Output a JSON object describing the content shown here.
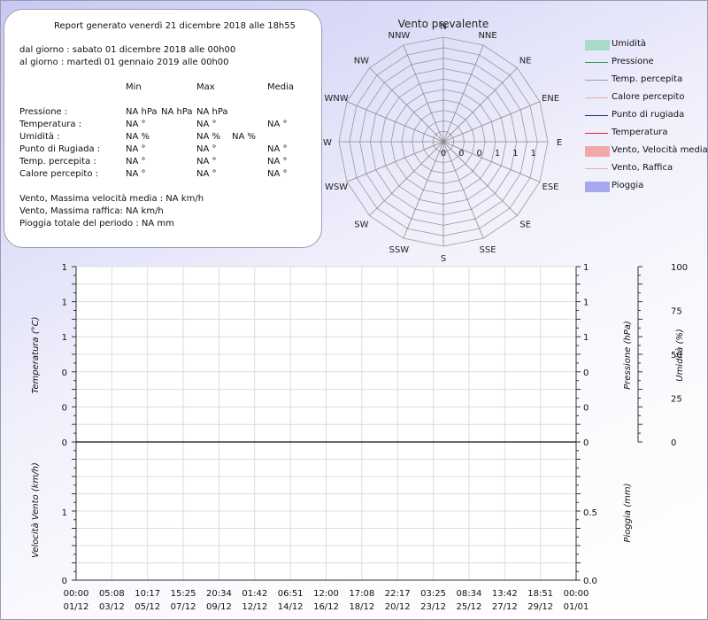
{
  "summary": {
    "title": "Report generato venerdì 21 dicembre 2018 alle 18h55",
    "from": "dal giorno : sabato 01 dicembre 2018 alle 00h00",
    "to": "al giorno : martedì 01 gennaio 2019 alle 00h00",
    "headers": {
      "min": "Min",
      "max": "Max",
      "media": "Media"
    },
    "rows": [
      {
        "label": "Pressione :",
        "min": "NA hPa",
        "max": "NA hPa",
        "media": "NA hPa"
      },
      {
        "label": "Temperatura :",
        "min": "NA °",
        "max": "NA °",
        "media": "NA °"
      },
      {
        "label": "Umidità :",
        "min": "NA %",
        "max": "NA %",
        "media": "NA %"
      },
      {
        "label": "Punto di Rugiada :",
        "min": "NA °",
        "max": "NA °",
        "media": "NA °"
      },
      {
        "label": "Temp. percepita :",
        "min": "NA °",
        "max": "NA °",
        "media": "NA °"
      },
      {
        "label": "Calore percepito :",
        "min": "NA °",
        "max": "NA °",
        "media": "NA °"
      }
    ],
    "wind_avg": "Vento, Massima velocità media : NA km/h",
    "wind_gust": "Vento, Massima raffica: NA km/h",
    "rain_total": "Pioggia totale del periodo : NA mm"
  },
  "legend": [
    {
      "label": "Umidità",
      "color": "#a8dcc8",
      "style": "box"
    },
    {
      "label": "Pressione",
      "color": "#2e9a4a",
      "style": "line"
    },
    {
      "label": "Temp. percepita",
      "color": "#9a9ac8",
      "style": "line"
    },
    {
      "label": "Calore percepito",
      "color": "#e8a8a8",
      "style": "line"
    },
    {
      "label": "Punto di rugiada",
      "color": "#2a2a8c",
      "style": "line"
    },
    {
      "label": "Temperatura",
      "color": "#e02828",
      "style": "line"
    },
    {
      "label": "Vento, Velocità media",
      "color": "#f0a8a8",
      "style": "box"
    },
    {
      "label": "Vento, Raffica",
      "color": "#f0a8a8",
      "style": "line"
    },
    {
      "label": "Pioggia",
      "color": "#a8a8f0",
      "style": "box"
    }
  ],
  "chart_data": [
    {
      "type": "radar",
      "title": "Vento prevalente",
      "directions": [
        "N",
        "NNE",
        "NE",
        "ENE",
        "E",
        "ESE",
        "SE",
        "SSE",
        "S",
        "SSW",
        "SW",
        "WSW",
        "W",
        "WNW",
        "NW",
        "NNW"
      ],
      "values": [
        0,
        0,
        0,
        0,
        0,
        0,
        0,
        0,
        0,
        0,
        0,
        0,
        0,
        0,
        0,
        0
      ],
      "radial_tick_labels": [
        "0",
        "0",
        "0",
        "1",
        "1",
        "1"
      ]
    },
    {
      "type": "line",
      "x_tick_times": [
        "00:00",
        "05:08",
        "10:17",
        "15:25",
        "20:34",
        "01:42",
        "06:51",
        "12:00",
        "17:08",
        "22:17",
        "03:25",
        "08:34",
        "13:42",
        "18:51",
        "00:00"
      ],
      "x_tick_dates": [
        "01/12",
        "03/12",
        "05/12",
        "07/12",
        "09/12",
        "12/12",
        "14/12",
        "16/12",
        "18/12",
        "20/12",
        "23/12",
        "25/12",
        "27/12",
        "29/12",
        "01/01"
      ],
      "temperature_axis": {
        "label": "Temperatura (°C)",
        "ticks": [
          "1",
          "1",
          "1",
          "0",
          "0",
          "0"
        ]
      },
      "pressure_axis": {
        "label": "Pressione (hPa)",
        "ticks": [
          "1",
          "1",
          "1",
          "0",
          "0",
          "0"
        ]
      },
      "humidity_axis": {
        "label": "Umidità (%)",
        "ticks": [
          "100",
          "75",
          "50",
          "25",
          "0"
        ],
        "ylim": [
          0,
          100
        ]
      },
      "series": []
    },
    {
      "type": "bar",
      "x_tick_times": [
        "00:00",
        "05:08",
        "10:17",
        "15:25",
        "20:34",
        "01:42",
        "06:51",
        "12:00",
        "17:08",
        "22:17",
        "03:25",
        "08:34",
        "13:42",
        "18:51",
        "00:00"
      ],
      "x_tick_dates": [
        "01/12",
        "03/12",
        "05/12",
        "07/12",
        "09/12",
        "12/12",
        "14/12",
        "16/12",
        "18/12",
        "20/12",
        "23/12",
        "25/12",
        "27/12",
        "29/12",
        "01/01"
      ],
      "wind_axis": {
        "label": "Velocità Vento (km/h)",
        "ticks": [
          "1",
          "0"
        ]
      },
      "rain_axis": {
        "label": "Pioggia (mm)",
        "ticks": [
          "0.5",
          "0.0"
        ],
        "ylim": [
          0,
          1
        ]
      },
      "series": []
    }
  ]
}
